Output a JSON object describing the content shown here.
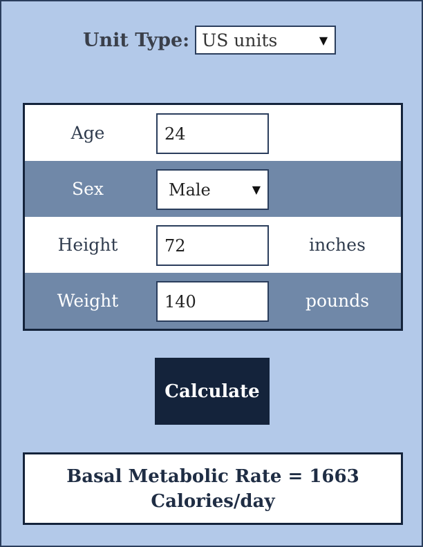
{
  "unit_type": {
    "label": "Unit Type:",
    "selected": "US units"
  },
  "form": {
    "age": {
      "label": "Age",
      "value": "24"
    },
    "sex": {
      "label": "Sex",
      "selected": "Male"
    },
    "height": {
      "label": "Height",
      "value": "72",
      "unit": "inches"
    },
    "weight": {
      "label": "Weight",
      "value": "140",
      "unit": "pounds"
    }
  },
  "calculate_label": "Calculate",
  "result": {
    "line1": "Basal Metabolic Rate = 1663",
    "line2": "Calories/day"
  },
  "colors": {
    "panel_bg": "#b3c9e9",
    "row_alt": "#7088a8",
    "dark_navy": "#14233b"
  },
  "icons": {
    "dropdown": "chevron-down-icon"
  }
}
